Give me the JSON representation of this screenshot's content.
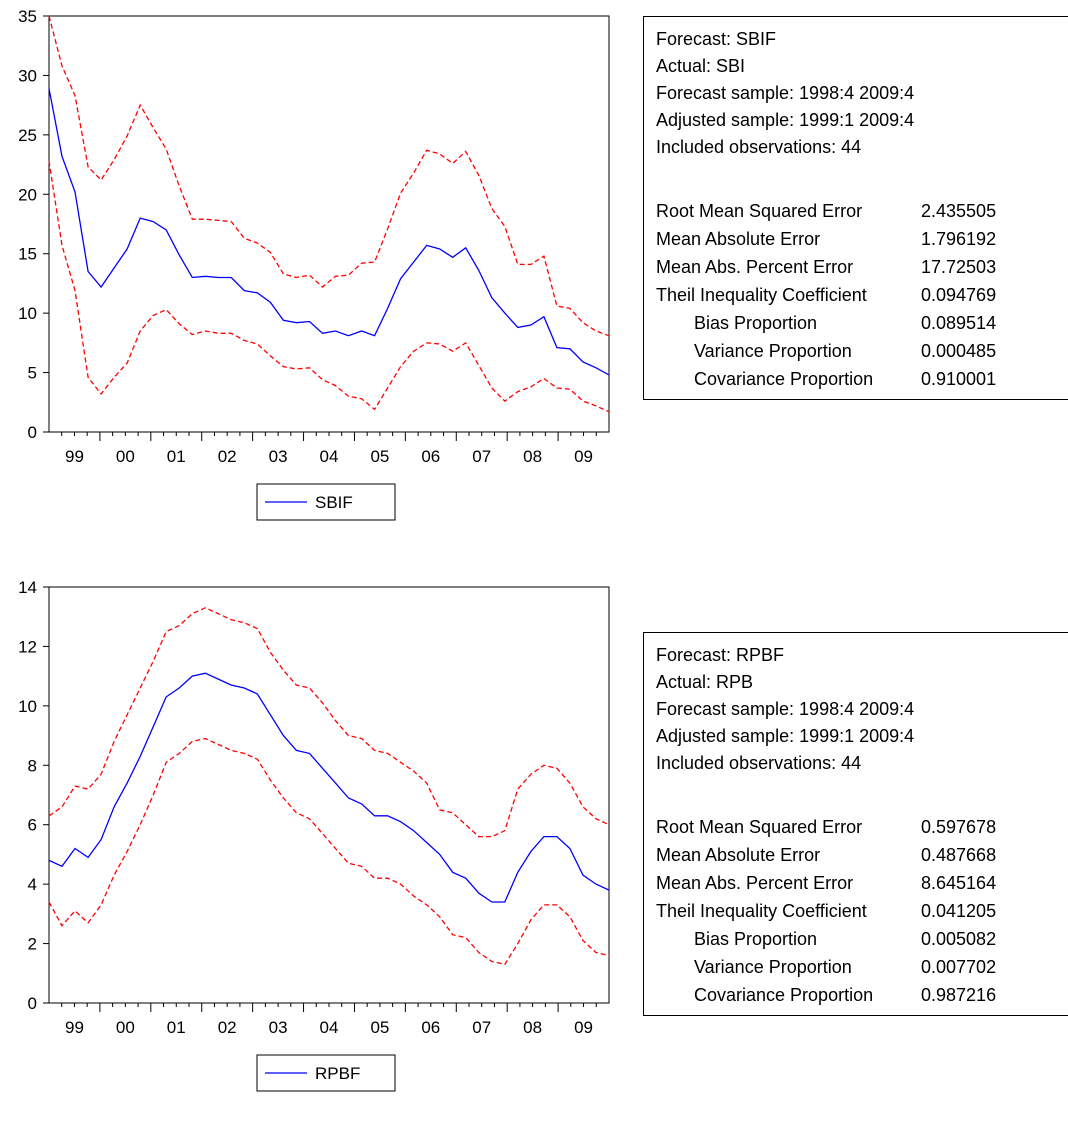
{
  "colors": {
    "forecast": "#0000ff",
    "band": "#ff0000",
    "axis": "#000000"
  },
  "chart_data": [
    {
      "type": "line",
      "title": "",
      "xlabel": "",
      "ylabel": "",
      "ylim": [
        0,
        35
      ],
      "yticks": [
        0,
        5,
        10,
        15,
        20,
        25,
        30,
        35
      ],
      "x_start_year": 1999,
      "x_tick_labels": [
        "99",
        "00",
        "01",
        "02",
        "03",
        "04",
        "05",
        "06",
        "07",
        "08",
        "09"
      ],
      "legend": {
        "position": "bottom-center",
        "entries": [
          "SBIF"
        ]
      },
      "series": [
        {
          "name": "SBIF",
          "style": "solid",
          "values": [
            28.9,
            23.2,
            20.2,
            13.5,
            12.2,
            13.8,
            15.4,
            18.0,
            17.7,
            17.0,
            14.9,
            13.0,
            13.1,
            13.0,
            13.0,
            11.9,
            11.7,
            10.9,
            9.4,
            9.2,
            9.3,
            8.3,
            8.5,
            8.1,
            8.5,
            8.1,
            10.4,
            12.9,
            14.3,
            15.7,
            15.4,
            14.7,
            15.5,
            13.6,
            11.3,
            10.0,
            8.8,
            9.0,
            9.7,
            7.1,
            7.0,
            5.9,
            5.4,
            4.8
          ]
        },
        {
          "style": "dashed",
          "values": [
            35.0,
            30.8,
            28.3,
            22.3,
            21.2,
            22.9,
            24.9,
            27.5,
            25.6,
            23.8,
            20.7,
            17.9,
            17.9,
            17.8,
            17.7,
            16.3,
            15.9,
            15.1,
            13.3,
            13.0,
            13.2,
            12.2,
            13.1,
            13.2,
            14.2,
            14.3,
            17.1,
            20.1,
            21.8,
            23.7,
            23.4,
            22.6,
            23.6,
            21.6,
            18.8,
            17.3,
            14.1,
            14.1,
            14.8,
            10.6,
            10.4,
            9.2,
            8.5,
            8.1
          ]
        },
        {
          "style": "dashed",
          "values": [
            22.8,
            15.7,
            11.9,
            4.6,
            3.2,
            4.6,
            5.8,
            8.5,
            9.8,
            10.3,
            9.1,
            8.2,
            8.5,
            8.3,
            8.3,
            7.7,
            7.4,
            6.4,
            5.5,
            5.3,
            5.4,
            4.4,
            3.9,
            3.0,
            2.8,
            1.9,
            3.7,
            5.5,
            6.8,
            7.5,
            7.4,
            6.8,
            7.5,
            5.6,
            3.7,
            2.6,
            3.4,
            3.8,
            4.5,
            3.7,
            3.6,
            2.6,
            2.2,
            1.7
          ]
        }
      ]
    },
    {
      "type": "line",
      "title": "",
      "xlabel": "",
      "ylabel": "",
      "ylim": [
        0,
        14
      ],
      "yticks": [
        0,
        2,
        4,
        6,
        8,
        10,
        12,
        14
      ],
      "x_start_year": 1999,
      "x_tick_labels": [
        "99",
        "00",
        "01",
        "02",
        "03",
        "04",
        "05",
        "06",
        "07",
        "08",
        "09"
      ],
      "legend": {
        "position": "bottom-center",
        "entries": [
          "RPBF"
        ]
      },
      "series": [
        {
          "name": "RPBF",
          "style": "solid",
          "values": [
            4.8,
            4.6,
            5.2,
            4.9,
            5.5,
            6.6,
            7.4,
            8.3,
            9.3,
            10.3,
            10.6,
            11.0,
            11.1,
            10.9,
            10.7,
            10.6,
            10.4,
            9.7,
            9.0,
            8.5,
            8.4,
            7.9,
            7.4,
            6.9,
            6.7,
            6.3,
            6.3,
            6.1,
            5.8,
            5.4,
            5.0,
            4.4,
            4.2,
            3.7,
            3.4,
            3.4,
            4.4,
            5.1,
            5.6,
            5.6,
            5.2,
            4.3,
            4.0,
            3.8
          ]
        },
        {
          "style": "dashed",
          "values": [
            6.3,
            6.6,
            7.3,
            7.2,
            7.7,
            8.8,
            9.7,
            10.6,
            11.5,
            12.5,
            12.7,
            13.1,
            13.3,
            13.1,
            12.9,
            12.8,
            12.6,
            11.8,
            11.2,
            10.7,
            10.6,
            10.1,
            9.5,
            9.0,
            8.9,
            8.5,
            8.4,
            8.1,
            7.8,
            7.4,
            6.5,
            6.4,
            6.0,
            5.6,
            5.6,
            5.8,
            7.2,
            7.7,
            8.0,
            7.9,
            7.4,
            6.6,
            6.2,
            6.0
          ]
        },
        {
          "style": "dashed",
          "values": [
            3.4,
            2.6,
            3.1,
            2.7,
            3.3,
            4.3,
            5.1,
            6.0,
            7.0,
            8.1,
            8.4,
            8.8,
            8.9,
            8.7,
            8.5,
            8.4,
            8.2,
            7.5,
            6.9,
            6.4,
            6.2,
            5.7,
            5.2,
            4.7,
            4.6,
            4.2,
            4.2,
            4.0,
            3.6,
            3.3,
            2.9,
            2.3,
            2.2,
            1.7,
            1.4,
            1.3,
            2.0,
            2.8,
            3.3,
            3.3,
            2.9,
            2.1,
            1.7,
            1.6
          ]
        }
      ]
    }
  ],
  "stats_panels": [
    {
      "header": [
        "Forecast: SBIF",
        "Actual: SBI",
        "Forecast sample: 1998:4 2009:4",
        "Adjusted sample: 1999:1 2009:4",
        "Included observations: 44"
      ],
      "rows": [
        {
          "label": "Root Mean Squared Error",
          "value": "2.435505",
          "indent": false
        },
        {
          "label": "Mean Absolute Error",
          "value": "1.796192",
          "indent": false
        },
        {
          "label": "Mean Abs. Percent Error",
          "value": "17.72503",
          "indent": false
        },
        {
          "label": "Theil Inequality Coefficient",
          "value": "0.094769",
          "indent": false
        },
        {
          "label": "Bias Proportion",
          "value": "0.089514",
          "indent": true
        },
        {
          "label": "Variance Proportion",
          "value": "0.000485",
          "indent": true
        },
        {
          "label": "Covariance Proportion",
          "value": "0.910001",
          "indent": true
        }
      ]
    },
    {
      "header": [
        "Forecast: RPBF",
        "Actual: RPB",
        "Forecast sample: 1998:4 2009:4",
        "Adjusted sample: 1999:1 2009:4",
        "Included observations: 44"
      ],
      "rows": [
        {
          "label": "Root Mean Squared Error",
          "value": "0.597678",
          "indent": false
        },
        {
          "label": "Mean Absolute Error",
          "value": "0.487668",
          "indent": false
        },
        {
          "label": "Mean Abs. Percent Error",
          "value": "8.645164",
          "indent": false
        },
        {
          "label": "Theil Inequality Coefficient",
          "value": "0.041205",
          "indent": false
        },
        {
          "label": "Bias Proportion",
          "value": "0.005082",
          "indent": true
        },
        {
          "label": "Variance Proportion",
          "value": "0.007702",
          "indent": true
        },
        {
          "label": "Covariance Proportion",
          "value": "0.987216",
          "indent": true
        }
      ]
    }
  ]
}
